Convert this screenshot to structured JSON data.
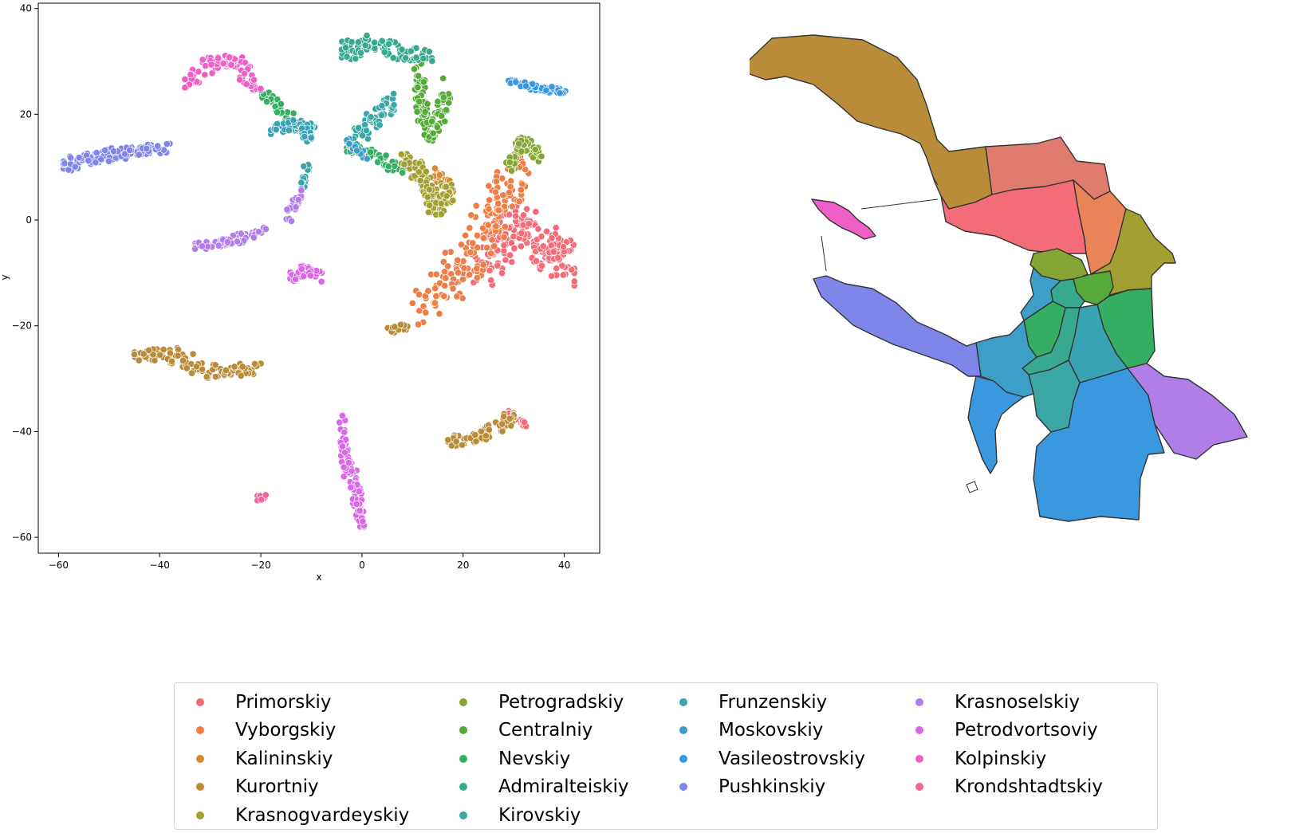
{
  "chart_data": [
    {
      "type": "scatter",
      "title": "",
      "xlabel": "x",
      "ylabel": "y",
      "xlim": [
        -64,
        47
      ],
      "ylim": [
        -63,
        41
      ],
      "xticks": [
        -60,
        -40,
        -20,
        0,
        20,
        40
      ],
      "yticks": [
        -60,
        -40,
        -20,
        0,
        20,
        40
      ],
      "grid": false,
      "series": [
        {
          "name": "Primorskiy",
          "color": "#f36c77",
          "clusters": [
            {
              "x": [
                18,
                42
              ],
              "y": [
                -18,
                8
              ],
              "n": 180,
              "path": [
                [
                  24,
                  -10
                ],
                [
                  30,
                  0
                ],
                [
                  36,
                  -5
                ],
                [
                  41,
                  -9
                ]
              ]
            },
            {
              "x": [
                29,
                33
              ],
              "y": [
                -39,
                -36
              ],
              "n": 20,
              "path": [
                [
                  28,
                  -36
                ],
                [
                  33,
                  -39
                ]
              ]
            }
          ]
        },
        {
          "name": "Vyborgskiy",
          "color": "#ee7e48",
          "clusters": [
            {
              "x": [
                10,
                33
              ],
              "y": [
                -20,
                12
              ],
              "n": 170,
              "path": [
                [
                  12,
                  -18
                ],
                [
                  20,
                  -8
                ],
                [
                  26,
                  0
                ],
                [
                  31,
                  10
                ]
              ]
            }
          ]
        },
        {
          "name": "Kalininskiy",
          "color": "#d48a39",
          "clusters": [
            {
              "x": [
                14,
                18
              ],
              "y": [
                4,
                10
              ],
              "n": 30,
              "path": [
                [
                  14,
                  9
                ],
                [
                  18,
                  6
                ]
              ]
            }
          ]
        },
        {
          "name": "Kurortniy",
          "color": "#b98c3a",
          "clusters": [
            {
              "x": [
                -45,
                -20
              ],
              "y": [
                -31,
                -24
              ],
              "n": 120,
              "path": [
                [
                  -45,
                  -26
                ],
                [
                  -38,
                  -25
                ],
                [
                  -30,
                  -29
                ],
                [
                  -20,
                  -28
                ]
              ]
            },
            {
              "x": [
                17,
                30
              ],
              "y": [
                -43,
                -36
              ],
              "n": 60,
              "path": [
                [
                  17,
                  -42
                ],
                [
                  24,
                  -41
                ],
                [
                  30,
                  -37
                ]
              ]
            },
            {
              "x": [
                5,
                9
              ],
              "y": [
                -23,
                -19
              ],
              "n": 15,
              "path": [
                [
                  5,
                  -21
                ],
                [
                  9,
                  -20
                ]
              ]
            }
          ]
        },
        {
          "name": "Krasnogvardeyskiy",
          "color": "#a2a033",
          "clusters": [
            {
              "x": [
                7,
                18
              ],
              "y": [
                0,
                14
              ],
              "n": 110,
              "path": [
                [
                  7,
                  12
                ],
                [
                  12,
                  8
                ],
                [
                  14,
                  2
                ],
                [
                  17,
                  6
                ]
              ]
            }
          ]
        },
        {
          "name": "Petrogradskiy",
          "color": "#86a535",
          "clusters": [
            {
              "x": [
                28,
                36
              ],
              "y": [
                9,
                17
              ],
              "n": 80,
              "path": [
                [
                  29,
                  10
                ],
                [
                  32,
                  15
                ],
                [
                  35,
                  12
                ]
              ]
            }
          ]
        },
        {
          "name": "Centralniy",
          "color": "#55aa3a",
          "clusters": [
            {
              "x": [
                9,
                18
              ],
              "y": [
                15,
                30
              ],
              "n": 110,
              "path": [
                [
                  11,
                  28
                ],
                [
                  12,
                  20
                ],
                [
                  14,
                  16
                ],
                [
                  17,
                  25
                ]
              ]
            }
          ]
        },
        {
          "name": "Nevskiy",
          "color": "#35ae63",
          "clusters": [
            {
              "x": [
                -20,
                -12
              ],
              "y": [
                17,
                25
              ],
              "n": 40,
              "path": [
                [
                  -20,
                  24
                ],
                [
                  -14,
                  19
                ]
              ]
            },
            {
              "x": [
                -3,
                8
              ],
              "y": [
                8,
                16
              ],
              "n": 45,
              "path": [
                [
                  -3,
                  14
                ],
                [
                  3,
                  12
                ],
                [
                  8,
                  9
                ]
              ]
            }
          ]
        },
        {
          "name": "Admiralteiskiy",
          "color": "#38a98e",
          "clusters": [
            {
              "x": [
                -4,
                14
              ],
              "y": [
                26,
                36
              ],
              "n": 90,
              "path": [
                [
                  -4,
                  31
                ],
                [
                  0,
                  34
                ],
                [
                  6,
                  32
                ],
                [
                  13,
                  31
                ]
              ]
            }
          ]
        },
        {
          "name": "Kirovskiy",
          "color": "#3aa6a6",
          "clusters": [
            {
              "x": [
                -15,
                -9
              ],
              "y": [
                15,
                19
              ],
              "n": 35,
              "path": [
                [
                  -15,
                  17
                ],
                [
                  -9,
                  18
                ]
              ]
            },
            {
              "x": [
                -3,
                8
              ],
              "y": [
                12,
                24
              ],
              "n": 55,
              "path": [
                [
                  -3,
                  14
                ],
                [
                  2,
                  19
                ],
                [
                  7,
                  23
                ]
              ]
            },
            {
              "x": [
                -12,
                -10
              ],
              "y": [
                5,
                11
              ],
              "n": 18,
              "path": [
                [
                  -11,
                  10
                ],
                [
                  -12,
                  6
                ]
              ]
            }
          ]
        },
        {
          "name": "Frunzenskiy",
          "color": "#39a2b3",
          "clusters": [
            {
              "x": [
                -18,
                -10
              ],
              "y": [
                14,
                21
              ],
              "n": 50,
              "path": [
                [
                  -18,
                  17
                ],
                [
                  -12,
                  18
                ],
                [
                  -10,
                  15
                ]
              ]
            }
          ]
        },
        {
          "name": "Moskovskiy",
          "color": "#3d9fc8",
          "clusters": [
            {
              "x": [
                -3,
                1
              ],
              "y": [
                11,
                16
              ],
              "n": 20,
              "path": [
                [
                  -3,
                  15
                ],
                [
                  1,
                  12
                ]
              ]
            }
          ]
        },
        {
          "name": "Vasileostrovskiy",
          "color": "#3a98df",
          "clusters": [
            {
              "x": [
                29,
                42
              ],
              "y": [
                24,
                27
              ],
              "n": 55,
              "path": [
                [
                  29,
                  26
                ],
                [
                  35,
                  25
                ],
                [
                  41,
                  24
                ]
              ]
            }
          ]
        },
        {
          "name": "Pushkinskiy",
          "color": "#7f86ea",
          "clusters": [
            {
              "x": [
                -59,
                -38
              ],
              "y": [
                8,
                15
              ],
              "n": 130,
              "path": [
                [
                  -59,
                  10
                ],
                [
                  -52,
                  12
                ],
                [
                  -45,
                  13
                ],
                [
                  -39,
                  14
                ]
              ]
            }
          ]
        },
        {
          "name": "Krasnoselskiy",
          "color": "#b17ee8",
          "clusters": [
            {
              "x": [
                -33,
                -19
              ],
              "y": [
                -6,
                -1
              ],
              "n": 80,
              "path": [
                [
                  -33,
                  -5
                ],
                [
                  -26,
                  -4
                ],
                [
                  -20,
                  -2
                ]
              ]
            },
            {
              "x": [
                -15,
                -12
              ],
              "y": [
                -2,
                6
              ],
              "n": 25,
              "path": [
                [
                  -15,
                  0
                ],
                [
                  -12,
                  5
                ]
              ]
            }
          ]
        },
        {
          "name": "Petrodvortsoviy",
          "color": "#d968e6",
          "clusters": [
            {
              "x": [
                -5,
                1
              ],
              "y": [
                -58,
                -37
              ],
              "n": 110,
              "path": [
                [
                  -4,
                  -38
                ],
                [
                  -3,
                  -46
                ],
                [
                  -1,
                  -52
                ],
                [
                  0,
                  -58
                ]
              ]
            },
            {
              "x": [
                -15,
                -8
              ],
              "y": [
                -14,
                -8
              ],
              "n": 50,
              "path": [
                [
                  -14,
                  -11
                ],
                [
                  -11,
                  -9
                ],
                [
                  -8,
                  -11
                ]
              ]
            }
          ]
        },
        {
          "name": "Kolpinskiy",
          "color": "#ef60c6",
          "clusters": [
            {
              "x": [
                -35,
                -20
              ],
              "y": [
                24,
                32
              ],
              "n": 90,
              "path": [
                [
                  -35,
                  25
                ],
                [
                  -30,
                  30
                ],
                [
                  -25,
                  30
                ],
                [
                  -21,
                  25
                ]
              ]
            }
          ]
        },
        {
          "name": "Krondshtadtskiy",
          "color": "#f1659d",
          "clusters": [
            {
              "x": [
                -21,
                -19
              ],
              "y": [
                -53,
                -52
              ],
              "n": 8,
              "path": [
                [
                  -21,
                  -53
                ],
                [
                  -19,
                  -52
                ]
              ]
            }
          ]
        }
      ]
    },
    {
      "type": "map",
      "regions": [
        {
          "name": "Kurortniy",
          "color": "#b98c3a"
        },
        {
          "name": "Primorskiy",
          "color": "#e07b70"
        },
        {
          "name": "Vyborgskiy",
          "color": "#f36c77"
        },
        {
          "name": "Kalininskiy",
          "color": "#e98358"
        },
        {
          "name": "Krasnogvardeyskiy",
          "color": "#a2a033"
        },
        {
          "name": "Petrogradskiy",
          "color": "#86a535"
        },
        {
          "name": "Centralniy",
          "color": "#55aa3a"
        },
        {
          "name": "Nevskiy",
          "color": "#35ae63"
        },
        {
          "name": "Admiralteiskiy",
          "color": "#38a98e"
        },
        {
          "name": "Frunzenskiy",
          "color": "#39a2b3"
        },
        {
          "name": "Moskovskiy",
          "color": "#3d9fc8"
        },
        {
          "name": "Vasileostrovskiy",
          "color": "#3a98df"
        },
        {
          "name": "Pushkinskiy",
          "color": "#7f86ea"
        },
        {
          "name": "Kirovskiy",
          "color": "#3aa6a6"
        },
        {
          "name": "Krasnoselskiy",
          "color": "#b17ee8"
        },
        {
          "name": "Kolpinskiy",
          "color": "#ef60c6"
        },
        {
          "name": "Petrodvortsoviy",
          "color": "#d968e6"
        }
      ]
    }
  ],
  "legend": {
    "columns": [
      [
        {
          "label": "Primorskiy",
          "color": "#f36c77"
        },
        {
          "label": "Vyborgskiy",
          "color": "#ee7e48"
        },
        {
          "label": "Kalininskiy",
          "color": "#d48a39"
        },
        {
          "label": "Kurortniy",
          "color": "#b98c3a"
        },
        {
          "label": "Krasnogvardeyskiy",
          "color": "#a2a033"
        }
      ],
      [
        {
          "label": "Petrogradskiy",
          "color": "#86a535"
        },
        {
          "label": "Centralniy",
          "color": "#55aa3a"
        },
        {
          "label": "Nevskiy",
          "color": "#35ae63"
        },
        {
          "label": "Admiralteiskiy",
          "color": "#38a98e"
        },
        {
          "label": "Kirovskiy",
          "color": "#3aa6a6"
        }
      ],
      [
        {
          "label": "Frunzenskiy",
          "color": "#39a2b3"
        },
        {
          "label": "Moskovskiy",
          "color": "#3d9fc8"
        },
        {
          "label": "Vasileostrovskiy",
          "color": "#3a98df"
        },
        {
          "label": "Pushkinskiy",
          "color": "#7f86ea"
        }
      ],
      [
        {
          "label": "Krasnoselskiy",
          "color": "#b17ee8"
        },
        {
          "label": "Petrodvortsoviy",
          "color": "#d968e6"
        },
        {
          "label": "Kolpinskiy",
          "color": "#ef60c6"
        },
        {
          "label": "Krondshtadtskiy",
          "color": "#f1659d"
        }
      ]
    ]
  }
}
